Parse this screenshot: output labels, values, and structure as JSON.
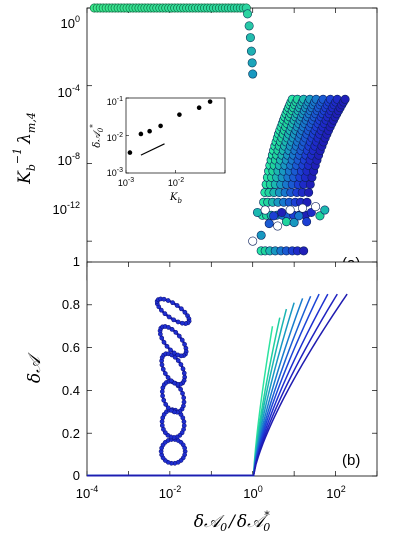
{
  "chart_data": [
    {
      "id": "a",
      "type": "scatter",
      "panel_label": "(a)",
      "ylabel": "K_b^{-1} λ_{m,4}",
      "yscale": "log",
      "ylim": [
        1e-14,
        1
      ],
      "ytick_labels": [
        "10^0",
        "10^-4",
        "10^-8",
        "10^-12"
      ],
      "xscale": "log",
      "xlim": [
        0.0001,
        1000
      ],
      "shares_x_with": "b",
      "marker": "circle",
      "colors": [
        "#27e6a4",
        "#1fd39c",
        "#1bb8b0",
        "#1898c0",
        "#1878cc",
        "#1a5ad2",
        "#1c3fd4",
        "#1e2ac8",
        "#1f1fb8"
      ],
      "series_note_values": {
        "plateau": {
          "x_range": [
            0.00015,
            0.7
          ],
          "y": 1
        },
        "curves": [
          {
            "x_start": 1.6,
            "x_end": 9,
            "y_end": 2e-05
          },
          {
            "x_start": 2.0,
            "x_end": 12,
            "y_end": 2e-05
          },
          {
            "x_start": 2.6,
            "x_end": 17,
            "y_end": 2e-05
          },
          {
            "x_start": 3.5,
            "x_end": 24,
            "y_end": 2e-05
          },
          {
            "x_start": 4.8,
            "x_end": 34,
            "y_end": 2e-05
          },
          {
            "x_start": 6.5,
            "x_end": 50,
            "y_end": 2e-05
          },
          {
            "x_start": 9,
            "x_end": 75,
            "y_end": 2e-05
          },
          {
            "x_start": 12,
            "x_end": 110,
            "y_end": 2e-05
          },
          {
            "x_start": 17,
            "x_end": 170,
            "y_end": 2e-05
          }
        ]
      },
      "inset": {
        "xlabel": "K_b",
        "ylabel": "δA_0^*",
        "xscale": "log",
        "yscale": "log",
        "xlim": [
          0.001,
          0.1
        ],
        "ylim": [
          0.001,
          0.1
        ],
        "xtick_labels": [
          "10^-3",
          "10^-2"
        ],
        "ytick_labels": [
          "10^-1",
          "10^-2",
          "10^-3"
        ],
        "points": [
          {
            "x": 0.0012,
            "y": 0.0035
          },
          {
            "x": 0.002,
            "y": 0.011
          },
          {
            "x": 0.003,
            "y": 0.013
          },
          {
            "x": 0.005,
            "y": 0.018
          },
          {
            "x": 0.012,
            "y": 0.036
          },
          {
            "x": 0.03,
            "y": 0.055
          },
          {
            "x": 0.05,
            "y": 0.08
          }
        ],
        "reference_line": {
          "x": [
            0.002,
            0.006
          ],
          "y": [
            0.003,
            0.006
          ]
        }
      }
    },
    {
      "id": "b",
      "type": "line",
      "panel_label": "(b)",
      "xlabel": "δA_0 / δA_0^*",
      "ylabel": "δA",
      "xscale": "log",
      "xlim": [
        0.0001,
        1000
      ],
      "ylim": [
        0,
        1
      ],
      "xtick_labels": [
        "10^-4",
        "10^-2",
        "10^0",
        "10^2"
      ],
      "ytick_labels": [
        "0",
        "0.2",
        "0.4",
        "0.6",
        "0.8",
        "1"
      ],
      "colors": [
        "#2ce3a0",
        "#20cfa0",
        "#1bb5b2",
        "#1898c2",
        "#187ccd",
        "#1a5fd3",
        "#1c45d6",
        "#1e30d0",
        "#1f22c0",
        "#1f1cb0"
      ],
      "series": [
        {
          "x_end": 3.0,
          "y_end": 0.7
        },
        {
          "x_end": 4.5,
          "y_end": 0.74
        },
        {
          "x_end": 6.5,
          "y_end": 0.78
        },
        {
          "x_end": 10,
          "y_end": 0.81
        },
        {
          "x_end": 16,
          "y_end": 0.83
        },
        {
          "x_end": 25,
          "y_end": 0.84
        },
        {
          "x_end": 40,
          "y_end": 0.85
        },
        {
          "x_end": 65,
          "y_end": 0.85
        },
        {
          "x_end": 110,
          "y_end": 0.85
        },
        {
          "x_end": 190,
          "y_end": 0.85
        }
      ],
      "shape_markers": [
        {
          "x": 0.012,
          "y": 0.115
        },
        {
          "x": 0.012,
          "y": 0.245
        },
        {
          "x": 0.012,
          "y": 0.37
        },
        {
          "x": 0.012,
          "y": 0.5
        },
        {
          "x": 0.012,
          "y": 0.63
        },
        {
          "x": 0.012,
          "y": 0.77
        }
      ]
    }
  ],
  "text": {
    "panel_a_tag": "(a)",
    "panel_b_tag": "(b)",
    "a_ytick_0": "10",
    "a_ytick_0_exp": "0",
    "a_ytick_1": "10",
    "a_ytick_1_exp": "-4",
    "a_ytick_2": "10",
    "a_ytick_2_exp": "-8",
    "a_ytick_3": "10",
    "a_ytick_3_exp": "-12",
    "b_xtick_0": "10",
    "b_xtick_0_exp": "-4",
    "b_xtick_1": "10",
    "b_xtick_1_exp": "-2",
    "b_xtick_2": "10",
    "b_xtick_2_exp": "0",
    "b_xtick_3": "10",
    "b_xtick_3_exp": "2",
    "b_ytick_0": "0",
    "b_ytick_1": "0.2",
    "b_ytick_2": "0.4",
    "b_ytick_3": "0.6",
    "b_ytick_4": "0.8",
    "b_ytick_5": "1",
    "inset_ytick_0": "10",
    "inset_ytick_0_exp": "-1",
    "inset_ytick_1": "10",
    "inset_ytick_1_exp": "-2",
    "inset_ytick_2": "10",
    "inset_ytick_2_exp": "-3",
    "inset_xtick_0": "10",
    "inset_xtick_0_exp": "-3",
    "inset_xtick_1": "10",
    "inset_xtick_1_exp": "-2",
    "a_ylabel_base": "K",
    "a_ylabel_sub": "b",
    "a_ylabel_sup": "−1",
    "a_ylabel_lambda": "λ",
    "a_ylabel_lambda_sub": "m,4",
    "b_ylabel": "δ𝒜",
    "b_xlabel_num": "δ𝒜",
    "b_xlabel_num_sub": "0",
    "b_xlabel_den": "δ𝒜",
    "b_xlabel_den_sub": "0",
    "b_xlabel_den_sup": "*",
    "inset_xlabel": "K",
    "inset_xlabel_sub": "b",
    "inset_ylabel": "δ𝒜",
    "inset_ylabel_sub": "0",
    "inset_ylabel_sup": "*"
  }
}
